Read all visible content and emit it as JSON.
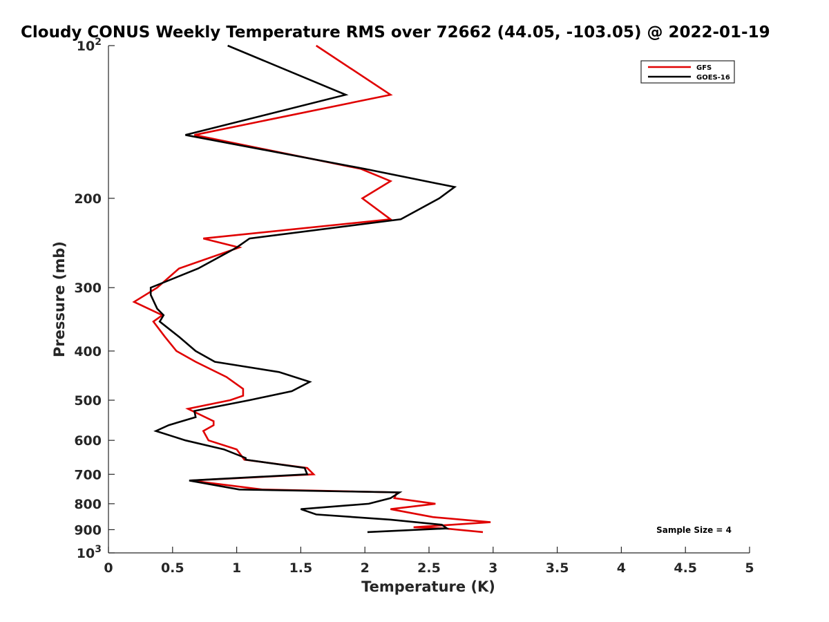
{
  "chart_data": {
    "type": "line",
    "title": "Cloudy CONUS Weekly Temperature RMS over 72662 (44.05, -103.05) @ 2022-01-19",
    "xlabel": "Temperature (K)",
    "ylabel": "Pressure (mb)",
    "xlim": [
      0,
      5
    ],
    "ylim": [
      100,
      1000
    ],
    "y_scale": "log",
    "y_reversed": true,
    "grid": false,
    "legend_position": "top-right",
    "x_ticks": [
      "0",
      "0.5",
      "1",
      "1.5",
      "2",
      "2.5",
      "3",
      "3.5",
      "4",
      "4.5",
      "5"
    ],
    "y_ticks": [
      {
        "value": 100,
        "base": "10",
        "exp": "2"
      },
      {
        "value": 200,
        "label": "200"
      },
      {
        "value": 300,
        "label": "300"
      },
      {
        "value": 400,
        "label": "400"
      },
      {
        "value": 500,
        "label": "500"
      },
      {
        "value": 600,
        "label": "600"
      },
      {
        "value": 700,
        "label": "700"
      },
      {
        "value": 800,
        "label": "800"
      },
      {
        "value": 900,
        "label": "900"
      },
      {
        "value": 1000,
        "base": "10",
        "exp": "3"
      }
    ],
    "annotation": "Sample Size = 4",
    "series": [
      {
        "name": "GFS",
        "color": "#e00000",
        "points": [
          [
            1.62,
            100
          ],
          [
            2.2,
            125
          ],
          [
            0.67,
            150
          ],
          [
            1.97,
            175
          ],
          [
            2.2,
            185
          ],
          [
            1.98,
            200
          ],
          [
            2.2,
            220
          ],
          [
            0.74,
            240
          ],
          [
            1.02,
            250
          ],
          [
            0.55,
            275
          ],
          [
            0.38,
            300
          ],
          [
            0.2,
            320
          ],
          [
            0.42,
            340
          ],
          [
            0.35,
            350
          ],
          [
            0.44,
            375
          ],
          [
            0.53,
            400
          ],
          [
            0.68,
            420
          ],
          [
            0.92,
            450
          ],
          [
            1.05,
            475
          ],
          [
            1.05,
            490
          ],
          [
            0.95,
            500
          ],
          [
            0.62,
            520
          ],
          [
            0.82,
            550
          ],
          [
            0.82,
            560
          ],
          [
            0.74,
            575
          ],
          [
            0.78,
            600
          ],
          [
            1.0,
            625
          ],
          [
            1.05,
            650
          ],
          [
            1.06,
            655
          ],
          [
            1.55,
            680
          ],
          [
            1.6,
            700
          ],
          [
            0.64,
            720
          ],
          [
            1.2,
            750
          ],
          [
            2.25,
            760
          ],
          [
            2.23,
            780
          ],
          [
            2.55,
            800
          ],
          [
            2.2,
            820
          ],
          [
            2.53,
            850
          ],
          [
            2.98,
            870
          ],
          [
            2.38,
            890
          ],
          [
            2.62,
            895
          ],
          [
            2.92,
            910
          ]
        ]
      },
      {
        "name": "GOES-16",
        "color": "#000000",
        "points": [
          [
            0.93,
            100
          ],
          [
            1.85,
            125
          ],
          [
            0.6,
            150
          ],
          [
            2.0,
            175
          ],
          [
            2.7,
            190
          ],
          [
            2.58,
            200
          ],
          [
            2.28,
            220
          ],
          [
            1.1,
            240
          ],
          [
            1.0,
            250
          ],
          [
            0.7,
            275
          ],
          [
            0.33,
            300
          ],
          [
            0.33,
            310
          ],
          [
            0.38,
            330
          ],
          [
            0.43,
            340
          ],
          [
            0.4,
            350
          ],
          [
            0.55,
            375
          ],
          [
            0.68,
            400
          ],
          [
            0.83,
            420
          ],
          [
            1.33,
            440
          ],
          [
            1.57,
            460
          ],
          [
            1.43,
            480
          ],
          [
            1.1,
            500
          ],
          [
            0.67,
            525
          ],
          [
            0.68,
            540
          ],
          [
            0.47,
            560
          ],
          [
            0.37,
            575
          ],
          [
            0.6,
            600
          ],
          [
            0.9,
            625
          ],
          [
            1.07,
            650
          ],
          [
            1.07,
            655
          ],
          [
            1.53,
            680
          ],
          [
            1.55,
            700
          ],
          [
            0.63,
            720
          ],
          [
            1.02,
            750
          ],
          [
            2.27,
            760
          ],
          [
            2.2,
            780
          ],
          [
            2.03,
            800
          ],
          [
            1.5,
            820
          ],
          [
            1.62,
            840
          ],
          [
            2.2,
            860
          ],
          [
            2.6,
            880
          ],
          [
            2.64,
            895
          ],
          [
            2.02,
            910
          ]
        ]
      }
    ]
  }
}
